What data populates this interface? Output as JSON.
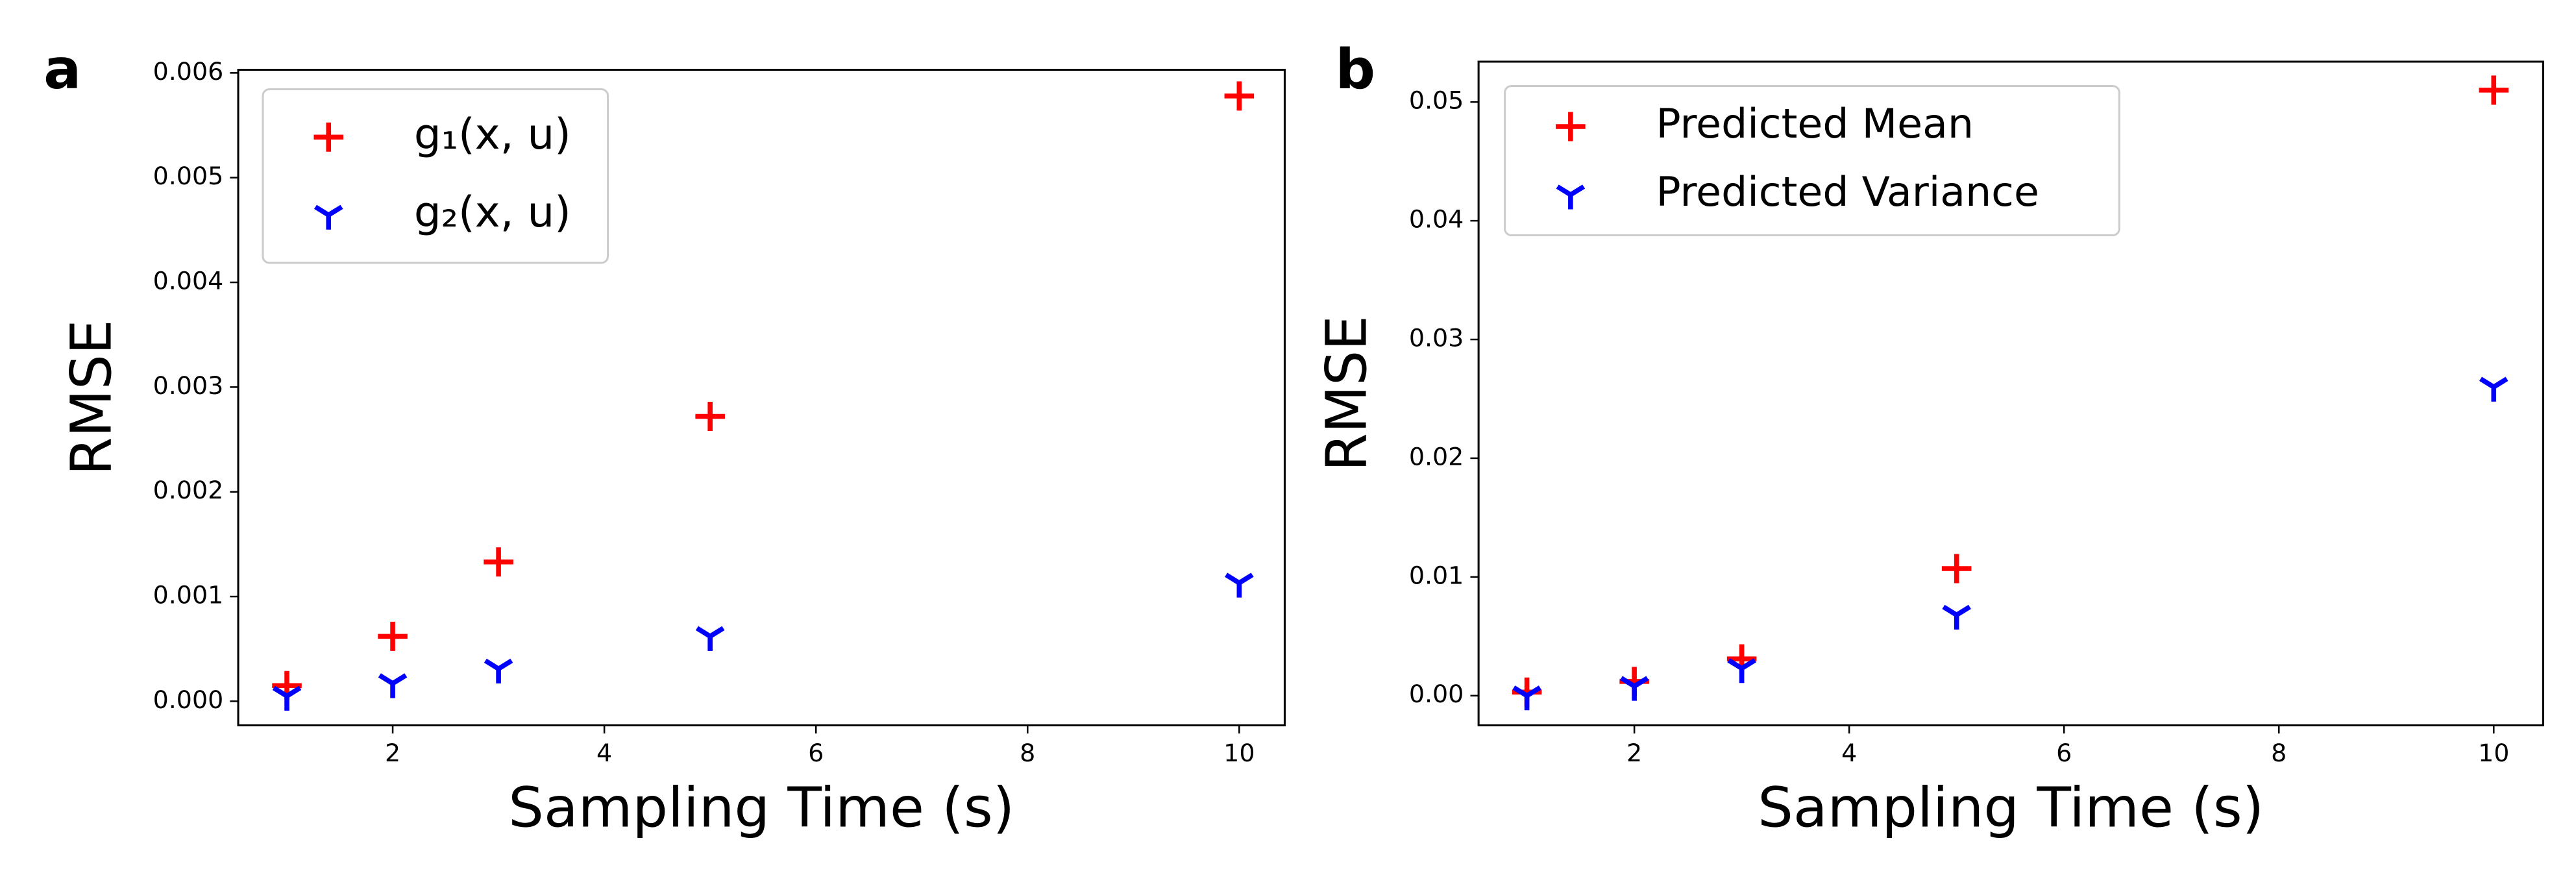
{
  "chart_data": [
    {
      "type": "scatter",
      "panel_label": "a",
      "x_label": "Sampling Time (s)",
      "y_label": "RMSE",
      "x": [
        1,
        2,
        3,
        5,
        10
      ],
      "series": [
        {
          "name": "g₁(x, u)",
          "color": "#ff0000",
          "marker": "plus",
          "values": [
            0.00015,
            0.00062,
            0.00133,
            0.00272,
            0.00578
          ]
        },
        {
          "name": "g₂(x, u)",
          "color": "#0000ff",
          "marker": "tri_down",
          "values": [
            5e-05,
            0.00017,
            0.00031,
            0.00062,
            0.00113
          ]
        }
      ],
      "xlim": [
        0.54,
        10.43
      ],
      "xticks": [
        2,
        4,
        6,
        8,
        10
      ],
      "ylim": [
        -0.00023,
        0.00603
      ],
      "yticks": [
        {
          "value": 0,
          "label": "0.000"
        },
        {
          "value": 0.001,
          "label": "0.001"
        },
        {
          "value": 0.002,
          "label": "0.002"
        },
        {
          "value": 0.003,
          "label": "0.003"
        },
        {
          "value": 0.004,
          "label": "0.004"
        },
        {
          "value": 0.005,
          "label": "0.005"
        },
        {
          "value": 0.006,
          "label": "0.006"
        }
      ],
      "legend": "upper left",
      "grid": false
    },
    {
      "type": "scatter",
      "panel_label": "b",
      "x_label": "Sampling Time (s)",
      "y_label": "RMSE",
      "x": [
        1,
        2,
        3,
        5,
        10
      ],
      "series": [
        {
          "name": "Predicted Mean",
          "color": "#ff0000",
          "marker": "plus",
          "values": [
            0.0003,
            0.0012,
            0.0031,
            0.0107,
            0.051
          ]
        },
        {
          "name": "Predicted Variance",
          "color": "#0000ff",
          "marker": "tri_down",
          "values": [
            0.0,
            0.0008,
            0.0023,
            0.0068,
            0.026
          ]
        }
      ],
      "xlim": [
        0.55,
        10.46
      ],
      "xticks": [
        2,
        4,
        6,
        8,
        10
      ],
      "ylim": [
        -0.0025,
        0.0534
      ],
      "yticks": [
        {
          "value": 0,
          "label": "0.00"
        },
        {
          "value": 0.01,
          "label": "0.01"
        },
        {
          "value": 0.02,
          "label": "0.02"
        },
        {
          "value": 0.03,
          "label": "0.03"
        },
        {
          "value": 0.04,
          "label": "0.04"
        },
        {
          "value": 0.05,
          "label": "0.05"
        }
      ],
      "legend": "upper left",
      "grid": false
    }
  ]
}
